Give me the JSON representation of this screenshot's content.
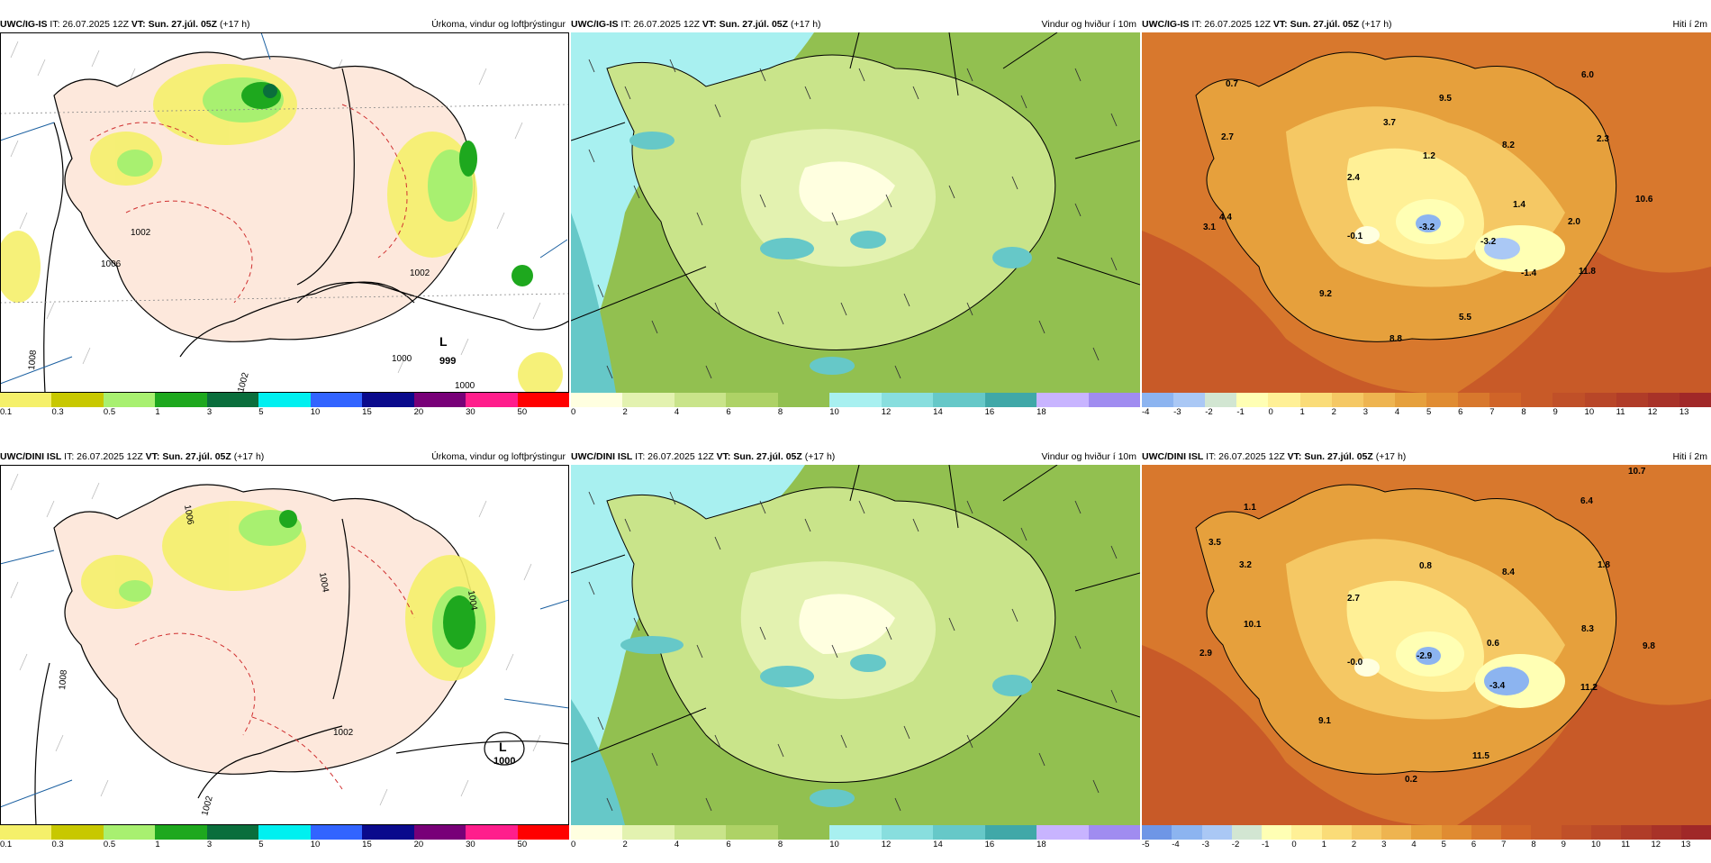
{
  "row1": {
    "model": "UWC/IG-IS",
    "it": "IT: 26.07.2025 12Z",
    "vt_label": "VT:",
    "vt": "Sun. 27.júl. 05Z",
    "step": "(+17 h)",
    "panels": [
      {
        "param": "Úrkoma, vindur og loftþrýstingur",
        "low_label": "L",
        "low_value": "999",
        "contours": [
          "1008",
          "1002",
          "1002",
          "1000",
          "1000",
          "1002",
          "1006"
        ],
        "legend": [
          "0.1",
          "0.3",
          "0.5",
          "1",
          "3",
          "5",
          "10",
          "15",
          "20",
          "30",
          "50"
        ]
      },
      {
        "param": "Vindur og hviður í 10m",
        "legend": [
          "0",
          "2",
          "4",
          "6",
          "8",
          "10",
          "12",
          "14",
          "16",
          "18"
        ]
      },
      {
        "param": "Hiti í 2m",
        "values": [
          "0.7",
          "6.0",
          "9.5",
          "3.7",
          "2.7",
          "1.2",
          "8.2",
          "2.3",
          "2.4",
          "1.4",
          "10.6",
          "4.4",
          "3.1",
          "-0.1",
          "-3.2",
          "-3.2",
          "2.0",
          "-1.4",
          "11.8",
          "9.2",
          "5.5",
          "8.8"
        ],
        "legend": [
          "-4",
          "-3",
          "-2",
          "-1",
          "0",
          "1",
          "2",
          "3",
          "4",
          "5",
          "6",
          "7",
          "8",
          "9",
          "10",
          "11",
          "12",
          "13"
        ]
      }
    ]
  },
  "row2": {
    "model": "UWC/DINI ISL",
    "it": "IT: 26.07.2025 12Z",
    "vt_label": "VT:",
    "vt": "Sun. 27.júl. 05Z",
    "step": "(+17 h)",
    "panels": [
      {
        "param": "Úrkoma, vindur og loftþrýstingur",
        "low_label": "L",
        "low_value": "1000",
        "contours": [
          "1008",
          "1006",
          "1004",
          "1002",
          "1002",
          "1004"
        ],
        "legend": [
          "0.1",
          "0.3",
          "0.5",
          "1",
          "3",
          "5",
          "10",
          "15",
          "20",
          "30",
          "50"
        ]
      },
      {
        "param": "Vindur og hviður í 10m",
        "legend": [
          "0",
          "2",
          "4",
          "6",
          "8",
          "10",
          "12",
          "14",
          "16",
          "18"
        ]
      },
      {
        "param": "Hiti í 2m",
        "values": [
          "10.7",
          "1.1",
          "6.4",
          "3.5",
          "3.2",
          "0.8",
          "8.4",
          "1.8",
          "2.7",
          "10.1",
          "8.3",
          "0.6",
          "2.9",
          "-0.0",
          "-2.9",
          "9.8",
          "-3.4",
          "11.2",
          "9.1",
          "11.5",
          "0.2"
        ],
        "legend": [
          "-5",
          "-4",
          "-3",
          "-2",
          "-1",
          "0",
          "1",
          "2",
          "3",
          "4",
          "5",
          "6",
          "7",
          "8",
          "9",
          "10",
          "11",
          "12",
          "13"
        ]
      }
    ]
  },
  "colors": {
    "precip": [
      "#f5f06a",
      "#c8c800",
      "#a8f070",
      "#1ea81e",
      "#0a6e3c",
      "#00f0f0",
      "#3264ff",
      "#0a0a8c",
      "#780078",
      "#ff1e8c",
      "#ff0000"
    ],
    "wind": [
      "#ffffe0",
      "#e3f2b0",
      "#c9e48a",
      "#aed266",
      "#92c050",
      "#a8f0f0",
      "#88dede",
      "#66c8c8",
      "#40a8a8",
      "#c8b4ff",
      "#a08cf0"
    ],
    "temp": [
      "#6e96e6",
      "#8cb4f0",
      "#aac8f5",
      "#d2e6d2",
      "#ffffb4",
      "#fff096",
      "#fadc78",
      "#f5c864",
      "#eeb450",
      "#e6a03c",
      "#e08c32",
      "#d8782d",
      "#d06428",
      "#c85a28",
      "#c05028",
      "#b84628",
      "#b03c28",
      "#a83228",
      "#a02828"
    ]
  }
}
